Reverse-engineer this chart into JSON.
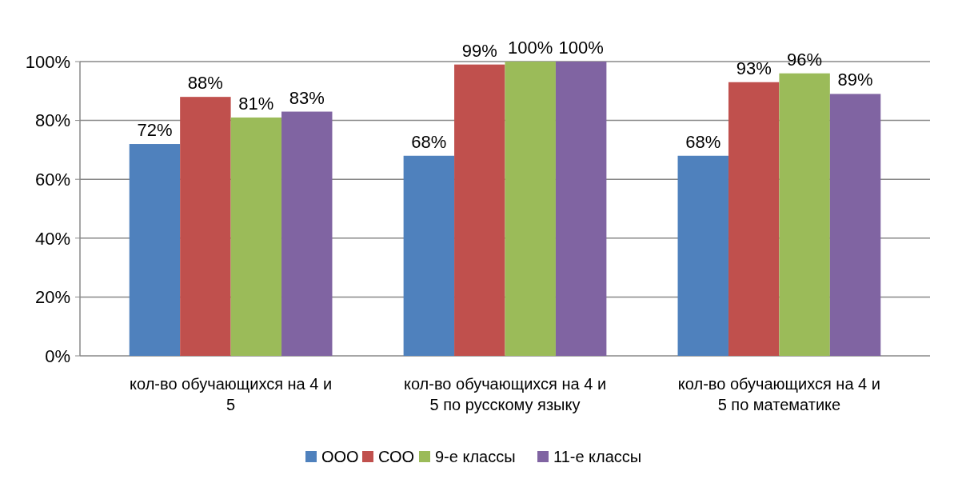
{
  "chart_data": {
    "type": "bar",
    "categories": [
      "кол-во обучающихся на 4 и 5",
      "кол-во обучающихся на 4 и 5 по русскому языку",
      "кол-во обучающихся на 4 и 5 по математике"
    ],
    "series": [
      {
        "name": "ООО",
        "color": "#4f81bd",
        "values": [
          72,
          68,
          68
        ],
        "value_labels": [
          "72%",
          "68%",
          "68%"
        ]
      },
      {
        "name": "СОО",
        "color": "#c0504d",
        "values": [
          88,
          99,
          93
        ],
        "value_labels": [
          "88%",
          "99%",
          "93%"
        ]
      },
      {
        "name": "9-е классы",
        "color": "#9bbb59",
        "values": [
          81,
          100,
          96
        ],
        "value_labels": [
          "81%",
          "100%",
          "96%"
        ]
      },
      {
        "name": "11-е классы",
        "color": "#8064a2",
        "values": [
          83,
          100,
          89
        ],
        "value_labels": [
          "83%",
          "100%",
          "89%"
        ]
      }
    ],
    "ylim": [
      0,
      100
    ],
    "yticks": [
      {
        "value": 0,
        "label": "0%"
      },
      {
        "value": 20,
        "label": "20%"
      },
      {
        "value": 40,
        "label": "40%"
      },
      {
        "value": 60,
        "label": "60%"
      },
      {
        "value": 80,
        "label": "80%"
      },
      {
        "value": 100,
        "label": "100%"
      }
    ],
    "grid": "y",
    "legend": "bottom"
  }
}
